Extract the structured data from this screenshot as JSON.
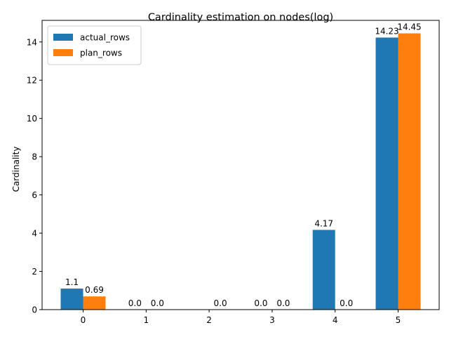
{
  "chart_data": {
    "type": "bar",
    "title": "Cardinality estimation on nodes(log)",
    "xlabel": "",
    "ylabel": "Cardinality",
    "categories": [
      "0",
      "1",
      "2",
      "3",
      "4",
      "5"
    ],
    "series": [
      {
        "name": "actual_rows",
        "color": "#1f77b4",
        "values": [
          1.1,
          0.0,
          null,
          0.0,
          4.17,
          14.23
        ],
        "labels": [
          "1.1",
          "0.0",
          "",
          "0.0",
          "4.17",
          "14.23"
        ]
      },
      {
        "name": "plan_rows",
        "color": "#ff7f0e",
        "values": [
          0.69,
          0.0,
          0.0,
          0.0,
          0.0,
          14.45
        ],
        "labels": [
          "0.69",
          "0.0",
          "0.0",
          "0.0",
          "0.0",
          "14.45"
        ]
      }
    ],
    "ylim": [
      0,
      15.13
    ],
    "yticks": [
      0,
      2,
      4,
      6,
      8,
      10,
      12,
      14
    ],
    "legend_position": "top-left",
    "grid": false
  }
}
